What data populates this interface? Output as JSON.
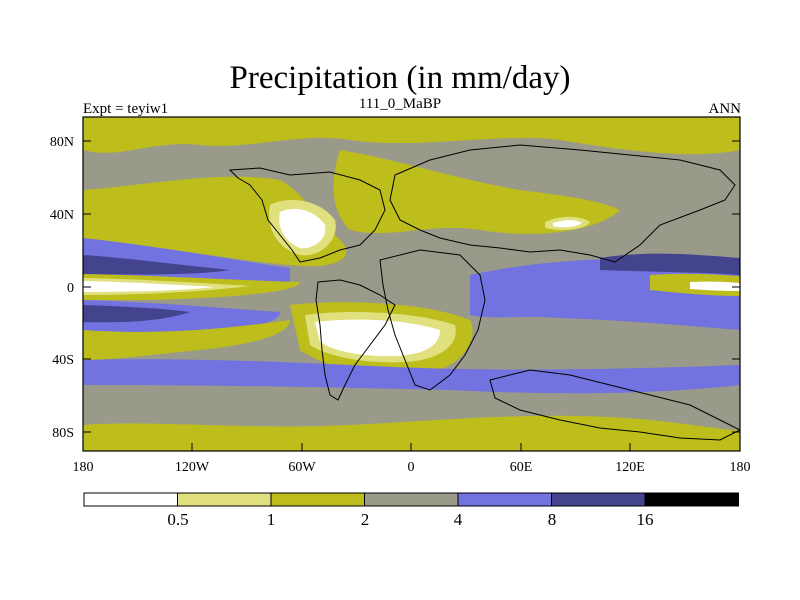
{
  "header": {
    "title": "Precipitation (in mm/day)",
    "left": "Expt = teyiw1",
    "center": "111_0_MaBP",
    "right": "ANN"
  },
  "axes": {
    "y_ticks": [
      "80N",
      "40N",
      "0",
      "40S",
      "80S"
    ],
    "x_ticks": [
      "180",
      "120W",
      "60W",
      "0",
      "60E",
      "120E",
      "180"
    ]
  },
  "colorbar": {
    "levels": [
      "0.5",
      "1",
      "2",
      "4",
      "8",
      "16"
    ],
    "colors": [
      "#ffffff",
      "#e1e07e",
      "#bdbd1c",
      "#9a9a8a",
      "#7272e0",
      "#44448e",
      "#000000"
    ]
  },
  "palette": {
    "white": "#ffffff",
    "pale": "#e1e07e",
    "olive": "#bdbd1c",
    "gray": "#9a9a8a",
    "blue": "#7272e0",
    "navy": "#44448e",
    "black": "#000000"
  }
}
